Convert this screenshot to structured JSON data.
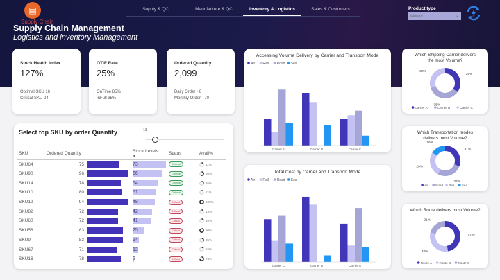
{
  "header": {
    "logo_text": "Supply Chain",
    "title": "Supply Chain Management",
    "subtitle": "Logistics and inventory Management"
  },
  "nav": {
    "tabs": [
      {
        "label": "Supply & QC",
        "active": false
      },
      {
        "label": "Manufacture & QC",
        "active": false
      },
      {
        "label": "Inventory & Logistics",
        "active": true
      },
      {
        "label": "Sales & Customers",
        "active": false
      }
    ]
  },
  "filter": {
    "label": "Product type",
    "value": "skincare"
  },
  "kpis": [
    {
      "title": "Stock Health Index",
      "value": "127%",
      "line1": "Optimal SKU 16",
      "line2": "Critical SKU 24"
    },
    {
      "title": "OTIF Rate",
      "value": "25%",
      "line1": "OnTime 85%",
      "line2": "InFull 35%"
    },
    {
      "title": "Ordered Quantity",
      "value": "2,099",
      "line1": "Daily Order - 6",
      "line2": "Monthly Order - 70"
    }
  ],
  "sku_table": {
    "title": "Select top SKU by order Quantity",
    "slider_value": "13",
    "slider_fraction": 0.05,
    "columns": [
      "SKU",
      "Ordered Quantity",
      "Stock Levels",
      "Status",
      "Avail%"
    ],
    "rows": [
      {
        "sku": "SKU64",
        "qty": 75,
        "stock": 73,
        "status": "Optimal",
        "avail": "11%"
      },
      {
        "sku": "SKU90",
        "qty": 96,
        "stock": 66,
        "status": "Optimal",
        "avail": "56%"
      },
      {
        "sku": "SKU14",
        "qty": 78,
        "stock": 54,
        "status": "Optimal",
        "avail": "26%"
      },
      {
        "sku": "SKU10",
        "qty": 80,
        "stock": 51,
        "status": "Optimal",
        "avail": "11%"
      },
      {
        "sku": "SKU19",
        "qty": 94,
        "stock": 48,
        "status": "Critical",
        "avail": "100%"
      },
      {
        "sku": "SKU82",
        "qty": 72,
        "stock": 42,
        "status": "Critical",
        "avail": "13%"
      },
      {
        "sku": "SKU60",
        "qty": 72,
        "stock": 41,
        "status": "Critical",
        "avail": "16%"
      },
      {
        "sku": "SKU56",
        "qty": 83,
        "stock": 25,
        "status": "Critical",
        "avail": "90%"
      },
      {
        "sku": "SKU9",
        "qty": 83,
        "stock": 14,
        "status": "Critical",
        "avail": "35%"
      },
      {
        "sku": "SKU67",
        "qty": 71,
        "stock": 12,
        "status": "Critical",
        "avail": "16%"
      },
      {
        "sku": "SKU16",
        "qty": 78,
        "stock": 2,
        "status": "Critical",
        "avail": "74%"
      }
    ]
  },
  "colors": {
    "Air": "#4236b8",
    "Rail": "#c4c2f2",
    "Road": "#a5a6d6",
    "Sea": "#2196f3",
    "optimal": "#3c9a5a",
    "critical": "#c0485a"
  },
  "chart_data": [
    {
      "type": "bar",
      "title": "Accessing Volume Delivery by Carrier and Transport Mode",
      "categories": [
        "Carrier A",
        "Carrier B",
        "Carrier C"
      ],
      "series": [
        {
          "name": "Air",
          "values": [
            40,
            80,
            40
          ]
        },
        {
          "name": "Rail",
          "values": [
            20,
            66,
            46
          ]
        },
        {
          "name": "Road",
          "values": [
            85,
            0,
            53
          ]
        },
        {
          "name": "Sea",
          "values": [
            34,
            31,
            15
          ]
        }
      ]
    },
    {
      "type": "bar",
      "title": "Total Cost by Carrier and Transport Mode",
      "categories": [
        "Carrier C",
        "Carrier B",
        "Carrier A"
      ],
      "series": [
        {
          "name": "Air",
          "values": [
            65,
            99,
            58
          ]
        },
        {
          "name": "Rail",
          "values": [
            32,
            87,
            25
          ]
        },
        {
          "name": "Road",
          "values": [
            71,
            0,
            82
          ]
        },
        {
          "name": "Sea",
          "values": [
            28,
            10,
            23
          ]
        }
      ]
    },
    {
      "type": "pie",
      "title": "Which Shipping Carrier delivers the most Volume?",
      "labels": [
        "Carrier A",
        "Carrier B",
        "Carrier C"
      ],
      "values": [
        35,
        35,
        30
      ],
      "colors": [
        "#4236b8",
        "#a5a6d6",
        "#c4c2f2"
      ]
    },
    {
      "type": "pie",
      "title": "Which Transportation modes delivers most Volume?",
      "labels": [
        "Air",
        "Road",
        "Rail",
        "Sea"
      ],
      "values": [
        31,
        27,
        26,
        16
      ],
      "colors": [
        "#4236b8",
        "#a5a6d6",
        "#c4c2f2",
        "#2196f3"
      ]
    },
    {
      "type": "pie",
      "title": "Which Route delivers most Volume?",
      "labels": [
        "Route A",
        "Route B",
        "Route C"
      ],
      "values": [
        47,
        32,
        21
      ],
      "colors": [
        "#4236b8",
        "#c4c2f2",
        "#a5a6d6"
      ]
    }
  ]
}
